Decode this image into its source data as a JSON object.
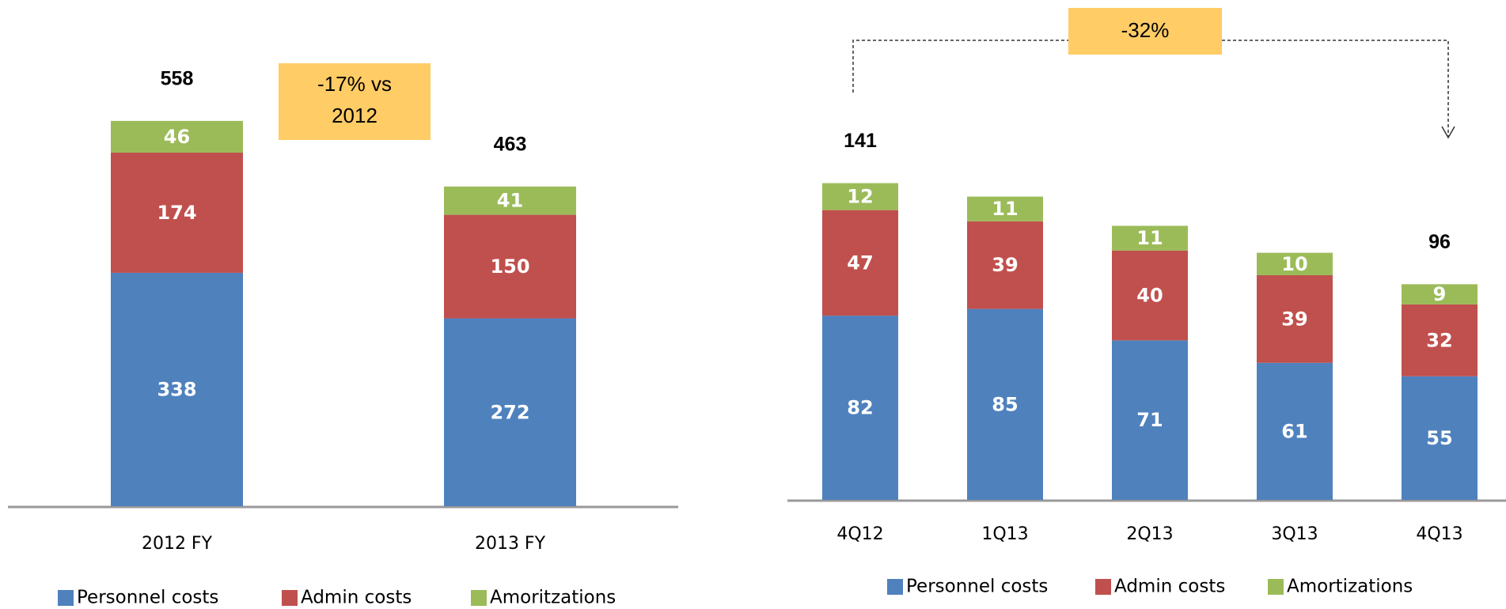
{
  "chart_data": [
    {
      "type": "stacked_bar",
      "categories": [
        "2012 FY",
        "2013 FY"
      ],
      "series": [
        {
          "name": "Personnel costs",
          "color": "#4f81bd",
          "values": [
            338,
            272
          ]
        },
        {
          "name": "Admin costs",
          "color": "#c0504d",
          "values": [
            174,
            150
          ]
        },
        {
          "name": "Amoritzations",
          "color": "#9bbb59",
          "values": [
            46,
            41
          ]
        }
      ],
      "totals": [
        558,
        463
      ],
      "annotation": [
        "-17% vs",
        "2012"
      ]
    },
    {
      "type": "stacked_bar",
      "categories": [
        "4Q12",
        "1Q13",
        "2Q13",
        "3Q13",
        "4Q13"
      ],
      "series": [
        {
          "name": "Personnel costs",
          "color": "#4f81bd",
          "values": [
            82,
            85,
            71,
            61,
            55
          ]
        },
        {
          "name": "Admin costs",
          "color": "#c0504d",
          "values": [
            47,
            39,
            40,
            39,
            32
          ]
        },
        {
          "name": "Amortizations",
          "color": "#9bbb59",
          "values": [
            12,
            11,
            11,
            10,
            9
          ]
        }
      ],
      "totals": [
        141,
        null,
        null,
        null,
        96
      ],
      "annotation": [
        "-32%"
      ]
    }
  ]
}
